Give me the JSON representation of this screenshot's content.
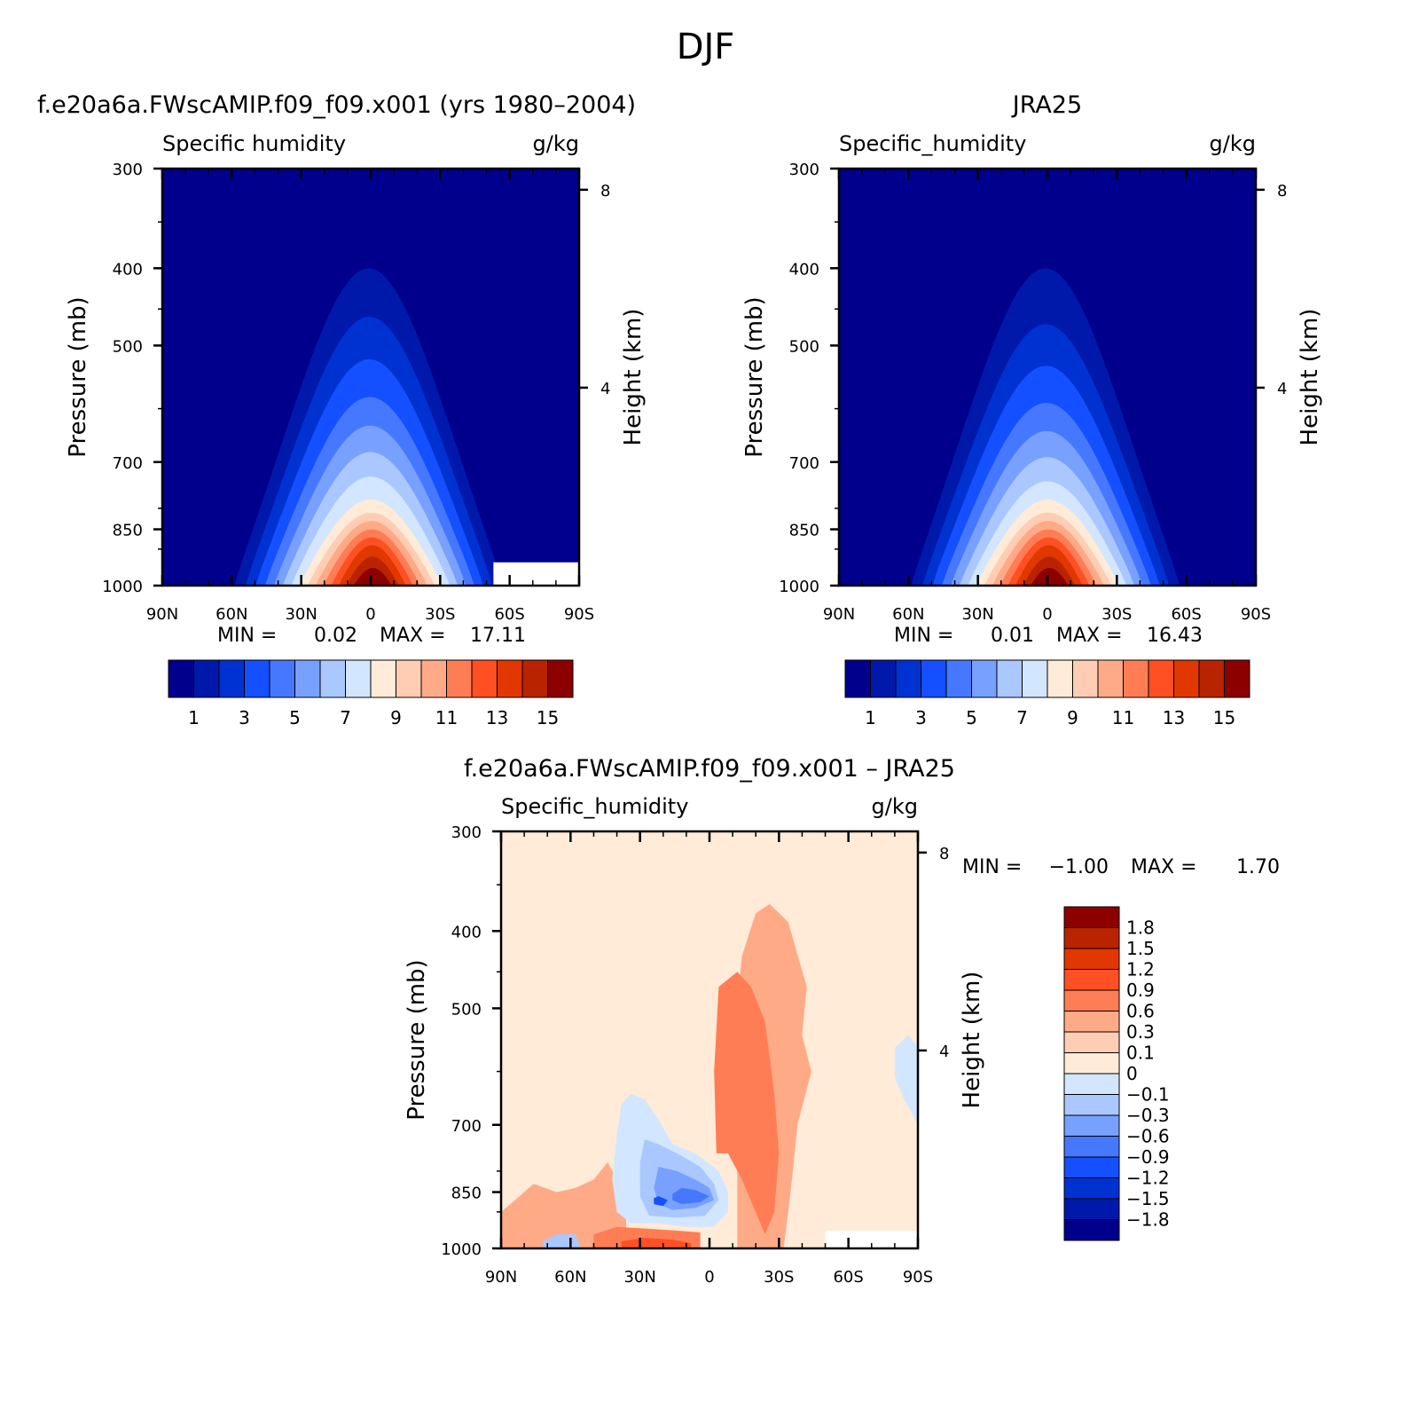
{
  "page": {
    "title": "DJF"
  },
  "panels": [
    {
      "id": "p1",
      "header": "f.e20a6a.FWscAMIP.f09_f09.x001 (yrs 1980–2004)",
      "left_label": "Specific humidity",
      "right_label": "g/kg",
      "stats": {
        "min_label": "MIN =",
        "min": "0.02",
        "max_label": "MAX =",
        "max": "17.11"
      }
    },
    {
      "id": "p2",
      "header": "JRA25",
      "left_label": "Specific_humidity",
      "right_label": "g/kg",
      "stats": {
        "min_label": "MIN =",
        "min": "0.01",
        "max_label": "MAX =",
        "max": "16.43"
      }
    },
    {
      "id": "p3",
      "header": "f.e20a6a.FWscAMIP.f09_f09.x001 – JRA25",
      "left_label": "Specific_humidity",
      "right_label": "g/kg",
      "stats": {
        "min_label": "MIN =",
        "min": "−1.00",
        "max_label": "MAX =",
        "max": "1.70"
      }
    }
  ],
  "axes": {
    "ylabel": "Pressure (mb)",
    "y2label": "Height (km)",
    "pressure_ticks": [
      "300",
      "400",
      "500",
      "700",
      "850",
      "1000"
    ],
    "height_ticks": [
      "8",
      "4"
    ],
    "lat_ticks": [
      "90N",
      "60N",
      "30N",
      "0",
      "30S",
      "60S",
      "90S"
    ]
  },
  "colorbar_abs": {
    "colors": [
      "#00008c",
      "#0019aa",
      "#0032d2",
      "#1450ff",
      "#4678ff",
      "#78a0ff",
      "#aac8ff",
      "#d2e6ff",
      "#ffebd7",
      "#ffcdb4",
      "#ffaa87",
      "#ff7d55",
      "#ff5023",
      "#e13700",
      "#b92300",
      "#8c0000"
    ],
    "labels": [
      "1",
      "3",
      "5",
      "7",
      "9",
      "11",
      "13",
      "15"
    ]
  },
  "colorbar_diff": {
    "colors": [
      "#8c0000",
      "#b92300",
      "#e13700",
      "#ff5023",
      "#ff7d55",
      "#ffaa87",
      "#ffcdb4",
      "#ffebd7",
      "#d2e6ff",
      "#aac8ff",
      "#78a0ff",
      "#4678ff",
      "#1450ff",
      "#0032d2",
      "#0019aa",
      "#00008c"
    ],
    "labels": [
      "1.8",
      "1.5",
      "1.2",
      "0.9",
      "0.6",
      "0.3",
      "0.1",
      "0",
      "−0.1",
      "−0.3",
      "−0.6",
      "−0.9",
      "−1.2",
      "−1.5",
      "−1.8"
    ]
  },
  "chart_data": [
    {
      "type": "heatmap",
      "title": "f.e20a6a.FWscAMIP.f09_f09.x001 (yrs 1980–2004)",
      "variable": "Specific humidity",
      "units": "g/kg",
      "xlabel": "",
      "ylabel": "Pressure (mb)",
      "y2label": "Height (km)",
      "x_ticks": [
        "90N",
        "60N",
        "30N",
        "0",
        "30S",
        "60S",
        "90S"
      ],
      "y_ticks": [
        300,
        400,
        500,
        700,
        850,
        1000
      ],
      "y_log": true,
      "levels": [
        1,
        2,
        3,
        4,
        5,
        6,
        7,
        8,
        9,
        10,
        11,
        12,
        13,
        14,
        15
      ],
      "min": 0.02,
      "max": 17.11,
      "contour_peaks_hPa": [
        {
          "level": 1,
          "hPa": 400
        },
        {
          "level": 2,
          "hPa": 460
        },
        {
          "level": 3,
          "hPa": 520
        },
        {
          "level": 4,
          "hPa": 580
        },
        {
          "level": 5,
          "hPa": 630
        },
        {
          "level": 6,
          "hPa": 680
        },
        {
          "level": 7,
          "hPa": 730
        },
        {
          "level": 8,
          "hPa": 780
        },
        {
          "level": 9,
          "hPa": 810
        },
        {
          "level": 10,
          "hPa": 830
        },
        {
          "level": 11,
          "hPa": 850
        },
        {
          "level": 12,
          "hPa": 870
        },
        {
          "level": 13,
          "hPa": 890
        },
        {
          "level": 14,
          "hPa": 920
        },
        {
          "level": 15,
          "hPa": 950
        }
      ]
    },
    {
      "type": "heatmap",
      "title": "JRA25",
      "variable": "Specific_humidity",
      "units": "g/kg",
      "xlabel": "",
      "ylabel": "Pressure (mb)",
      "y2label": "Height (km)",
      "x_ticks": [
        "90N",
        "60N",
        "30N",
        "0",
        "30S",
        "60S",
        "90S"
      ],
      "y_ticks": [
        300,
        400,
        500,
        700,
        850,
        1000
      ],
      "y_log": true,
      "levels": [
        1,
        2,
        3,
        4,
        5,
        6,
        7,
        8,
        9,
        10,
        11,
        12,
        13,
        14,
        15
      ],
      "min": 0.01,
      "max": 16.43,
      "contour_peaks_hPa": [
        {
          "level": 1,
          "hPa": 400
        },
        {
          "level": 2,
          "hPa": 470
        },
        {
          "level": 3,
          "hPa": 530
        },
        {
          "level": 4,
          "hPa": 590
        },
        {
          "level": 5,
          "hPa": 640
        },
        {
          "level": 6,
          "hPa": 690
        },
        {
          "level": 7,
          "hPa": 740
        },
        {
          "level": 8,
          "hPa": 780
        },
        {
          "level": 9,
          "hPa": 810
        },
        {
          "level": 10,
          "hPa": 830
        },
        {
          "level": 11,
          "hPa": 850
        },
        {
          "level": 12,
          "hPa": 870
        },
        {
          "level": 13,
          "hPa": 890
        },
        {
          "level": 14,
          "hPa": 920
        },
        {
          "level": 15,
          "hPa": 950
        }
      ]
    },
    {
      "type": "heatmap",
      "title": "f.e20a6a.FWscAMIP.f09_f09.x001 – JRA25",
      "variable": "Specific_humidity",
      "units": "g/kg",
      "xlabel": "",
      "ylabel": "Pressure (mb)",
      "y2label": "Height (km)",
      "x_ticks": [
        "90N",
        "60N",
        "30N",
        "0",
        "30S",
        "60S",
        "90S"
      ],
      "y_ticks": [
        300,
        400,
        500,
        700,
        850,
        1000
      ],
      "y_log": true,
      "levels": [
        -1.8,
        -1.5,
        -1.2,
        -0.9,
        -0.6,
        -0.3,
        -0.1,
        0,
        0.1,
        0.3,
        0.6,
        0.9,
        1.2,
        1.5,
        1.8
      ],
      "min": -1.0,
      "max": 1.7
    }
  ]
}
